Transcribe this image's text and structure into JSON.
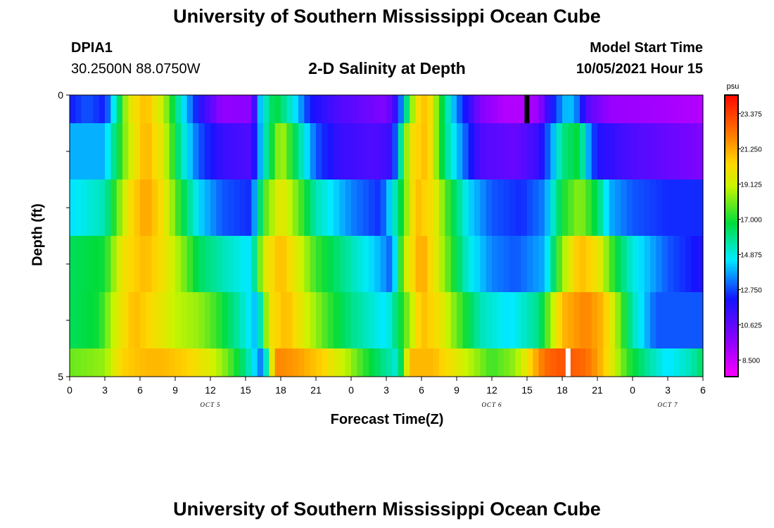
{
  "title_top": "University of Southern Mississippi Ocean Cube",
  "title_bottom": "University of Southern Mississippi Ocean Cube",
  "station": {
    "id": "DPIA1",
    "coords": "30.2500N  88.0750W"
  },
  "model_start": {
    "label": "Model Start Time",
    "value": "10/05/2021 Hour 15"
  },
  "chart_data": {
    "type": "heatmap",
    "title": "2-D Salinity at Depth",
    "xlabel": "Forecast Time(Z)",
    "ylabel": "Depth (ft)",
    "x_unit": "hours since Oct 5 00Z",
    "x_range": [
      0,
      54
    ],
    "y_range": [
      0,
      5
    ],
    "y_ticks": [
      {
        "value": 0,
        "label": "0"
      },
      {
        "value": 1,
        "label": ""
      },
      {
        "value": 2,
        "label": ""
      },
      {
        "value": 3,
        "label": ""
      },
      {
        "value": 4,
        "label": ""
      },
      {
        "value": 5,
        "label": "5"
      }
    ],
    "x_ticks": [
      "0",
      "3",
      "6",
      "9",
      "12",
      "15",
      "18",
      "21",
      "0",
      "3",
      "6",
      "9",
      "12",
      "15",
      "18",
      "21",
      "0",
      "3",
      "6"
    ],
    "date_labels": [
      {
        "hour": 12,
        "label": "OCT 5"
      },
      {
        "hour": 36,
        "label": "OCT 6"
      },
      {
        "hour": 51,
        "label": "OCT 7"
      }
    ],
    "colorbar": {
      "unit": "psu",
      "min": 7.5,
      "max": 24.5,
      "tick_labels": [
        "23.375",
        "21.250",
        "19.125",
        "17.000",
        "14.875",
        "12.750",
        "10.625",
        "8.500"
      ],
      "tick_values": [
        23.375,
        21.25,
        19.125,
        17.0,
        14.875,
        12.75,
        10.625,
        8.5
      ]
    },
    "markers": [
      {
        "hour": 39,
        "depth_top": 0,
        "depth_bottom": 0.5,
        "color": "#000000"
      },
      {
        "hour": 42.5,
        "depth_top": 4.5,
        "depth_bottom": 5,
        "color": "#ffffff"
      }
    ],
    "layers": [
      {
        "depth_top": 0.0,
        "depth_bottom": 0.5,
        "points": [
          [
            0,
            12.3
          ],
          [
            1.5,
            13.0
          ],
          [
            3,
            12.3
          ],
          [
            4,
            15.5
          ],
          [
            5,
            19.5
          ],
          [
            6.5,
            21.0
          ],
          [
            8,
            19.0
          ],
          [
            9.5,
            15.0
          ],
          [
            11,
            12.0
          ],
          [
            13,
            9.6
          ],
          [
            15.5,
            9.8
          ],
          [
            16.3,
            14.5
          ],
          [
            17.5,
            17.0
          ],
          [
            19,
            15.0
          ],
          [
            20.5,
            12.3
          ],
          [
            23,
            11.0
          ],
          [
            27,
            10.0
          ],
          [
            28,
            12.0
          ],
          [
            29.5,
            20.0
          ],
          [
            30.5,
            21.0
          ],
          [
            32,
            16.0
          ],
          [
            33,
            13.5
          ],
          [
            35,
            10.0
          ],
          [
            37,
            9.0
          ],
          [
            39,
            9.0
          ],
          [
            40,
            9.5
          ],
          [
            41,
            12.0
          ],
          [
            42.5,
            14.5
          ],
          [
            43.5,
            13.0
          ],
          [
            44,
            11.0
          ],
          [
            46,
            9.5
          ],
          [
            50,
            9.3
          ],
          [
            54,
            9.0
          ]
        ]
      },
      {
        "depth_top": 0.5,
        "depth_bottom": 1.5,
        "points": [
          [
            0,
            14.0
          ],
          [
            3,
            14.0
          ],
          [
            5,
            19.0
          ],
          [
            6.5,
            21.2
          ],
          [
            8,
            19.5
          ],
          [
            9.5,
            15.5
          ],
          [
            11,
            13.0
          ],
          [
            13,
            11.5
          ],
          [
            15.5,
            11.0
          ],
          [
            16.5,
            15.0
          ],
          [
            18,
            19.0
          ],
          [
            19.5,
            16.0
          ],
          [
            21,
            13.0
          ],
          [
            23,
            11.5
          ],
          [
            26,
            11.0
          ],
          [
            27.5,
            11.5
          ],
          [
            29,
            20.0
          ],
          [
            30.5,
            21.0
          ],
          [
            32,
            16.0
          ],
          [
            33.5,
            13.5
          ],
          [
            35,
            11.0
          ],
          [
            38,
            10.5
          ],
          [
            40,
            11.5
          ],
          [
            41,
            13.5
          ],
          [
            42,
            16.0
          ],
          [
            43.5,
            17.0
          ],
          [
            44,
            14.5
          ],
          [
            45,
            12.0
          ],
          [
            48,
            11.0
          ],
          [
            51,
            10.5
          ],
          [
            54,
            10.0
          ]
        ]
      },
      {
        "depth_top": 1.5,
        "depth_bottom": 2.5,
        "points": [
          [
            0,
            14.5
          ],
          [
            3,
            15.5
          ],
          [
            5,
            20.0
          ],
          [
            6.5,
            21.5
          ],
          [
            8,
            20.0
          ],
          [
            9.5,
            17.0
          ],
          [
            11,
            14.5
          ],
          [
            13,
            13.0
          ],
          [
            15.5,
            12.5
          ],
          [
            16.5,
            17.5
          ],
          [
            18,
            20.0
          ],
          [
            19.5,
            18.0
          ],
          [
            21,
            15.5
          ],
          [
            24,
            13.5
          ],
          [
            26.5,
            12.5
          ],
          [
            28,
            16.0
          ],
          [
            29.5,
            21.0
          ],
          [
            31,
            20.0
          ],
          [
            32.5,
            17.0
          ],
          [
            34,
            14.5
          ],
          [
            36,
            13.0
          ],
          [
            38.5,
            12.5
          ],
          [
            40.5,
            13.5
          ],
          [
            42,
            17.0
          ],
          [
            43.5,
            18.5
          ],
          [
            45,
            16.5
          ],
          [
            46,
            14.0
          ],
          [
            48,
            13.0
          ],
          [
            51,
            12.5
          ],
          [
            54,
            12.5
          ]
        ]
      },
      {
        "depth_top": 2.5,
        "depth_bottom": 3.5,
        "points": [
          [
            0,
            16.5
          ],
          [
            3,
            17.0
          ],
          [
            4.5,
            20.0
          ],
          [
            6.5,
            21.0
          ],
          [
            8,
            20.0
          ],
          [
            9.5,
            18.5
          ],
          [
            11,
            16.5
          ],
          [
            13,
            15.5
          ],
          [
            15.5,
            14.5
          ],
          [
            16.5,
            19.5
          ],
          [
            18,
            21.0
          ],
          [
            19.5,
            19.5
          ],
          [
            21,
            17.5
          ],
          [
            24,
            15.5
          ],
          [
            26.5,
            14.0
          ],
          [
            27.5,
            13.0
          ],
          [
            28.5,
            19.0
          ],
          [
            30,
            21.5
          ],
          [
            31,
            20.0
          ],
          [
            32.5,
            17.5
          ],
          [
            34,
            15.0
          ],
          [
            36,
            13.5
          ],
          [
            38,
            13.0
          ],
          [
            40.5,
            14.0
          ],
          [
            42,
            18.5
          ],
          [
            43.5,
            21.0
          ],
          [
            45,
            20.0
          ],
          [
            46.5,
            17.0
          ],
          [
            48,
            15.0
          ],
          [
            51,
            13.0
          ],
          [
            54,
            12.0
          ]
        ]
      },
      {
        "depth_top": 3.5,
        "depth_bottom": 4.5,
        "points": [
          [
            0,
            16.5
          ],
          [
            2.5,
            17.0
          ],
          [
            4,
            19.5
          ],
          [
            5.5,
            21.0
          ],
          [
            7.5,
            20.0
          ],
          [
            9,
            19.0
          ],
          [
            11,
            18.5
          ],
          [
            12.5,
            17.5
          ],
          [
            14.5,
            15.5
          ],
          [
            16,
            14.0
          ],
          [
            17,
            20.0
          ],
          [
            18.5,
            21.0
          ],
          [
            20,
            19.5
          ],
          [
            22,
            17.5
          ],
          [
            24,
            16.0
          ],
          [
            27,
            14.5
          ],
          [
            28.5,
            17.5
          ],
          [
            30,
            21.0
          ],
          [
            31.5,
            20.0
          ],
          [
            33,
            18.0
          ],
          [
            35,
            15.5
          ],
          [
            37.5,
            14.5
          ],
          [
            40,
            16.0
          ],
          [
            42,
            21.0
          ],
          [
            44,
            22.0
          ],
          [
            45.5,
            21.0
          ],
          [
            46.5,
            19.0
          ],
          [
            48,
            15.5
          ],
          [
            50,
            13.0
          ],
          [
            54,
            13.0
          ]
        ]
      },
      {
        "depth_top": 4.5,
        "depth_bottom": 5.0,
        "points": [
          [
            0,
            18.0
          ],
          [
            3,
            18.5
          ],
          [
            4.5,
            20.5
          ],
          [
            6.5,
            21.0
          ],
          [
            8,
            21.0
          ],
          [
            10,
            20.5
          ],
          [
            12,
            19.5
          ],
          [
            13.5,
            18.0
          ],
          [
            15,
            16.0
          ],
          [
            16.5,
            13.0
          ],
          [
            17.5,
            22.0
          ],
          [
            19.5,
            21.5
          ],
          [
            21.5,
            20.5
          ],
          [
            23.5,
            19.0
          ],
          [
            25.5,
            17.0
          ],
          [
            28,
            15.0
          ],
          [
            29,
            21.0
          ],
          [
            31,
            21.0
          ],
          [
            32.5,
            20.0
          ],
          [
            34,
            19.0
          ],
          [
            36,
            17.5
          ],
          [
            38,
            18.5
          ],
          [
            39,
            20.0
          ],
          [
            40.5,
            22.5
          ],
          [
            42,
            23.0
          ],
          [
            44,
            22.5
          ],
          [
            45,
            21.5
          ],
          [
            46,
            20.0
          ],
          [
            47.5,
            17.5
          ],
          [
            49,
            16.0
          ],
          [
            51,
            14.5
          ],
          [
            53,
            15.5
          ],
          [
            54,
            16.5
          ]
        ]
      }
    ]
  }
}
